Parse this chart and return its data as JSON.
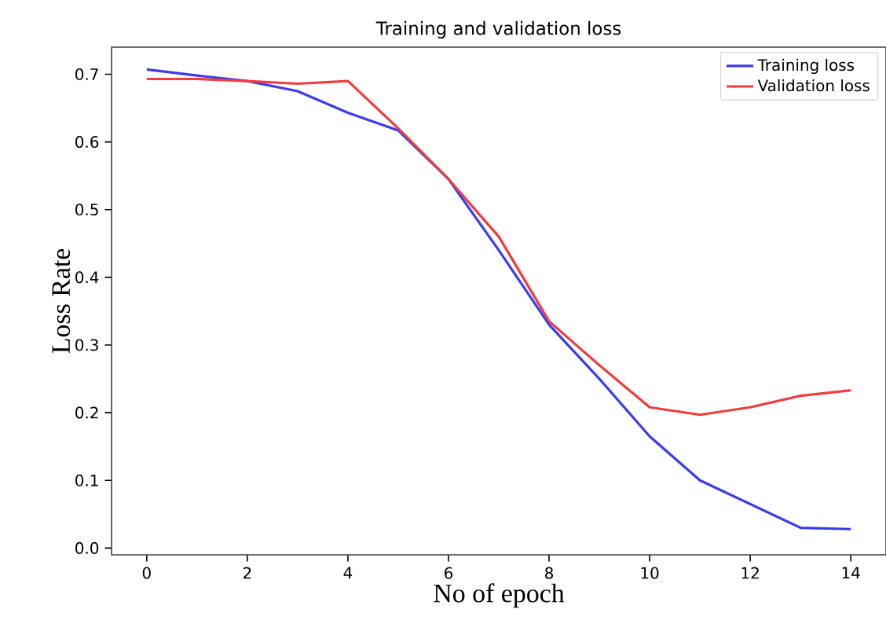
{
  "chart_data": {
    "type": "line",
    "title": "Training and validation loss",
    "xlabel": "No of epoch",
    "ylabel": "Loss Rate",
    "x": [
      0,
      1,
      2,
      3,
      4,
      5,
      6,
      7,
      8,
      9,
      10,
      11,
      12,
      13,
      14
    ],
    "series": [
      {
        "name": "Training loss",
        "color": "#3b3bf0",
        "values": [
          0.707,
          0.698,
          0.69,
          0.675,
          0.643,
          0.617,
          0.545,
          0.44,
          0.33,
          0.25,
          0.165,
          0.1,
          0.065,
          0.03,
          0.028
        ]
      },
      {
        "name": "Validation loss",
        "color": "#f03c3c",
        "values": [
          0.693,
          0.693,
          0.69,
          0.686,
          0.69,
          0.62,
          0.545,
          0.46,
          0.335,
          0.27,
          0.208,
          0.197,
          0.208,
          0.225,
          0.233
        ]
      }
    ],
    "xlim": [
      -0.7,
      14.7
    ],
    "ylim": [
      -0.01,
      0.74
    ],
    "xticks": [
      0,
      2,
      4,
      6,
      8,
      10,
      12,
      14
    ],
    "yticks": [
      {
        "value": 0,
        "label": "0.0"
      },
      0.1,
      0.2,
      0.3,
      0.4,
      0.5,
      0.6,
      0.7
    ],
    "grid": false,
    "legend": "top right",
    "marker": "none",
    "line_style": "solid"
  }
}
